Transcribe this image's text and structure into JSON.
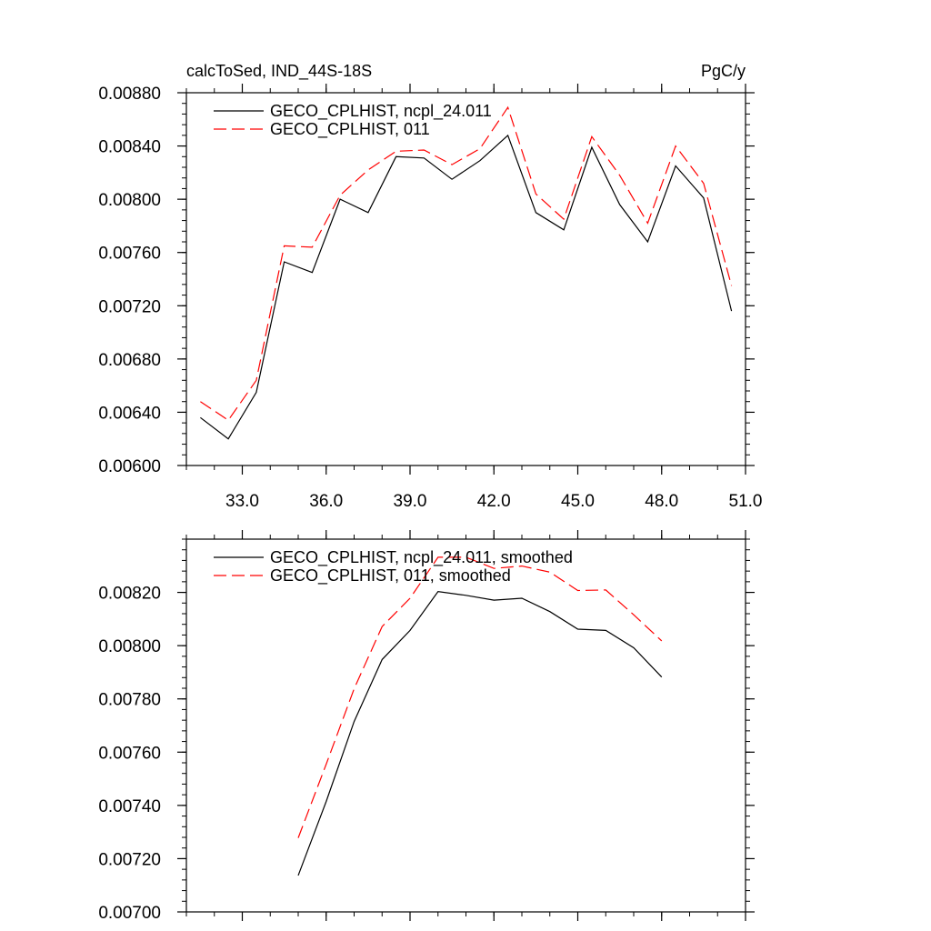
{
  "chart_data": [
    {
      "type": "line",
      "title_left": "calcToSed, IND_44S-18S",
      "title_right": "PgC/y",
      "xlabel": "",
      "ylabel": "",
      "xlim": [
        31.0,
        51.0
      ],
      "ylim": [
        0.006,
        0.0088
      ],
      "x_ticks": [
        33.0,
        36.0,
        39.0,
        42.0,
        45.0,
        48.0,
        51.0
      ],
      "x_tick_labels": [
        "33.0",
        "36.0",
        "39.0",
        "42.0",
        "45.0",
        "48.0",
        "51.0"
      ],
      "y_ticks": [
        0.006,
        0.0064,
        0.0068,
        0.0072,
        0.0076,
        0.008,
        0.0084,
        0.0088
      ],
      "y_tick_labels": [
        "0.00600",
        "0.00640",
        "0.00680",
        "0.00720",
        "0.00760",
        "0.00800",
        "0.00840",
        "0.00880"
      ],
      "legend_position": "top-left",
      "series": [
        {
          "name": "GECO_CPLHIST, ncpl_24.011",
          "color": "#000000",
          "dash": "solid",
          "x": [
            31.5,
            32.5,
            33.5,
            34.5,
            35.5,
            36.5,
            37.5,
            38.5,
            39.5,
            40.5,
            41.5,
            42.5,
            43.5,
            44.5,
            45.5,
            46.5,
            47.5,
            48.5,
            49.5,
            50.5
          ],
          "values": [
            0.00636,
            0.0062,
            0.00655,
            0.00753,
            0.00745,
            0.008,
            0.0079,
            0.00832,
            0.00831,
            0.00815,
            0.00829,
            0.00848,
            0.0079,
            0.00777,
            0.00839,
            0.00796,
            0.00768,
            0.00825,
            0.00801,
            0.00716
          ]
        },
        {
          "name": "GECO_CPLHIST, 011",
          "color": "#ff0000",
          "dash": "dashed",
          "x": [
            31.5,
            32.5,
            33.5,
            34.5,
            35.5,
            36.5,
            37.5,
            38.5,
            39.5,
            40.5,
            41.5,
            42.5,
            43.5,
            44.5,
            45.5,
            46.5,
            47.5,
            48.5,
            49.5,
            50.5
          ],
          "values": [
            0.00648,
            0.00634,
            0.00664,
            0.00765,
            0.00764,
            0.00803,
            0.00822,
            0.00836,
            0.00837,
            0.00826,
            0.00838,
            0.00869,
            0.00804,
            0.00785,
            0.00847,
            0.00818,
            0.00782,
            0.0084,
            0.00812,
            0.00735
          ]
        }
      ]
    },
    {
      "type": "line",
      "title_left": "",
      "title_right": "",
      "xlabel": "",
      "ylabel": "",
      "xlim": [
        31.0,
        51.0
      ],
      "ylim": [
        0.007,
        0.0084
      ],
      "x_ticks": [
        33.0,
        36.0,
        39.0,
        42.0,
        45.0,
        48.0,
        51.0
      ],
      "x_tick_labels": [],
      "y_ticks": [
        0.007,
        0.0072,
        0.0074,
        0.0076,
        0.0078,
        0.008,
        0.0082
      ],
      "y_tick_labels": [
        "0.00700",
        "0.00720",
        "0.00740",
        "0.00760",
        "0.00780",
        "0.00800",
        "0.00820"
      ],
      "legend_position": "top-left",
      "series": [
        {
          "name": "GECO_CPLHIST, ncpl_24.011, smoothed",
          "color": "#000000",
          "dash": "solid",
          "x": [
            35.0,
            36.0,
            37.0,
            38.0,
            39.0,
            40.0,
            41.0,
            42.0,
            43.0,
            44.0,
            45.0,
            46.0,
            47.0,
            48.0
          ],
          "values": [
            0.007137,
            0.007415,
            0.007715,
            0.007948,
            0.008057,
            0.008203,
            0.008189,
            0.008171,
            0.008178,
            0.008128,
            0.008062,
            0.008057,
            0.007992,
            0.007882
          ]
        },
        {
          "name": "GECO_CPLHIST, 011, smoothed",
          "color": "#ff0000",
          "dash": "dashed",
          "x": [
            35.0,
            36.0,
            37.0,
            38.0,
            39.0,
            40.0,
            41.0,
            42.0,
            43.0,
            44.0,
            45.0,
            46.0,
            47.0,
            48.0
          ],
          "values": [
            0.007278,
            0.007555,
            0.007838,
            0.008072,
            0.008178,
            0.008332,
            0.008332,
            0.00829,
            0.008299,
            0.008276,
            0.008207,
            0.008209,
            0.008116,
            0.008018
          ]
        }
      ]
    }
  ]
}
